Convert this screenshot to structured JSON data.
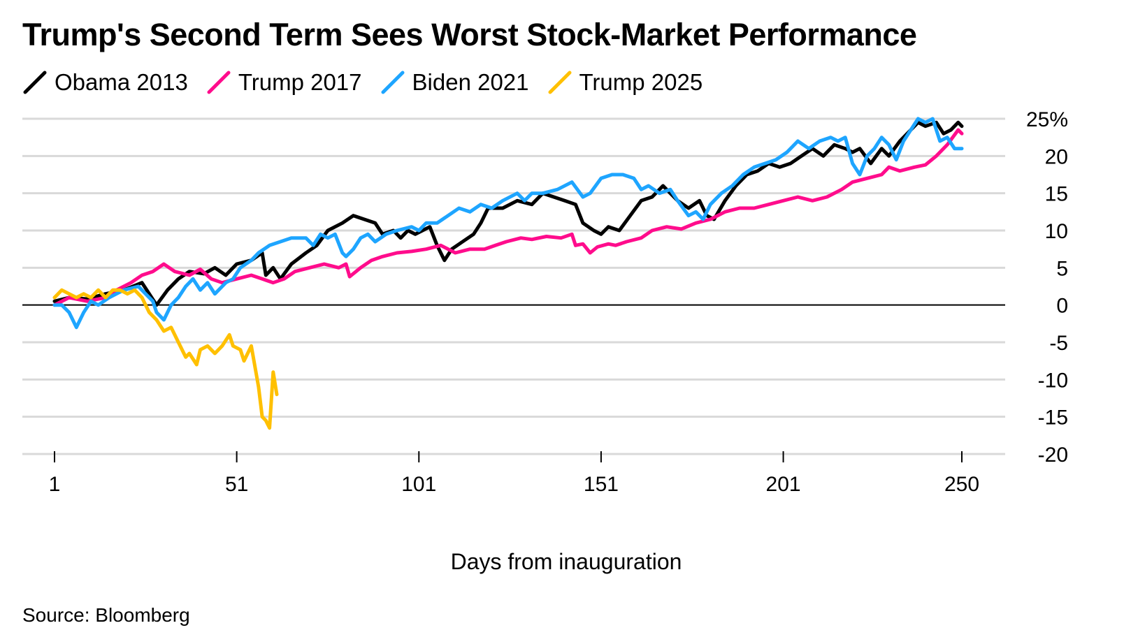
{
  "title": "Trump's Second Term Sees Worst Stock-Market Performance",
  "source": "Source: Bloomberg",
  "chart_data": {
    "type": "line",
    "title": "Trump's Second Term Sees Worst Stock-Market Performance",
    "xlabel": "Days from inauguration",
    "ylabel": "",
    "xlim": [
      1,
      250
    ],
    "ylim": [
      -20,
      25
    ],
    "x_ticks": [
      {
        "value": 1,
        "label": "1"
      },
      {
        "value": 51,
        "label": "51"
      },
      {
        "value": 101,
        "label": "101"
      },
      {
        "value": 151,
        "label": "151"
      },
      {
        "value": 201,
        "label": "201"
      },
      {
        "value": 250,
        "label": "250"
      }
    ],
    "y_ticks": [
      {
        "value": 25,
        "label": "25%"
      },
      {
        "value": 20,
        "label": "20"
      },
      {
        "value": 15,
        "label": "15"
      },
      {
        "value": 10,
        "label": "10"
      },
      {
        "value": 5,
        "label": "5"
      },
      {
        "value": 0,
        "label": "0"
      },
      {
        "value": -5,
        "label": "-5"
      },
      {
        "value": -10,
        "label": "-10"
      },
      {
        "value": -15,
        "label": "-15"
      },
      {
        "value": -20,
        "label": "-20"
      }
    ],
    "grid": true,
    "legend_position": "top-left",
    "series": [
      {
        "name": "Obama 2013",
        "color": "#000000",
        "points": [
          [
            1,
            0.5
          ],
          [
            5,
            1
          ],
          [
            10,
            0.8
          ],
          [
            15,
            1.5
          ],
          [
            20,
            2
          ],
          [
            25,
            3
          ],
          [
            29,
            0
          ],
          [
            32,
            2
          ],
          [
            35,
            3.5
          ],
          [
            38,
            4.5
          ],
          [
            42,
            4.2
          ],
          [
            45,
            5
          ],
          [
            48,
            4
          ],
          [
            51,
            5.5
          ],
          [
            55,
            6
          ],
          [
            58,
            7
          ],
          [
            59,
            4
          ],
          [
            61,
            5
          ],
          [
            63,
            3.5
          ],
          [
            66,
            5.5
          ],
          [
            70,
            7
          ],
          [
            73,
            8
          ],
          [
            76,
            10
          ],
          [
            80,
            11
          ],
          [
            83,
            12
          ],
          [
            86,
            11.5
          ],
          [
            89,
            11
          ],
          [
            91,
            9.5
          ],
          [
            94,
            10
          ],
          [
            96,
            9
          ],
          [
            98,
            10
          ],
          [
            100,
            9.5
          ],
          [
            102,
            10
          ],
          [
            104,
            10.5
          ],
          [
            106,
            8
          ],
          [
            108,
            6
          ],
          [
            110,
            7.5
          ],
          [
            113,
            8.5
          ],
          [
            116,
            9.5
          ],
          [
            118,
            11
          ],
          [
            120,
            13
          ],
          [
            124,
            13
          ],
          [
            128,
            14
          ],
          [
            132,
            13.5
          ],
          [
            135,
            15
          ],
          [
            138,
            14.5
          ],
          [
            141,
            14
          ],
          [
            144,
            13.5
          ],
          [
            146,
            11
          ],
          [
            149,
            10
          ],
          [
            151,
            9.5
          ],
          [
            153,
            10.5
          ],
          [
            156,
            10
          ],
          [
            159,
            12
          ],
          [
            162,
            14
          ],
          [
            165,
            14.5
          ],
          [
            168,
            16
          ],
          [
            170,
            15
          ],
          [
            172,
            14
          ],
          [
            175,
            13
          ],
          [
            178,
            14
          ],
          [
            180,
            12
          ],
          [
            182,
            11.5
          ],
          [
            185,
            14
          ],
          [
            188,
            16
          ],
          [
            191,
            17.5
          ],
          [
            194,
            18
          ],
          [
            197,
            19
          ],
          [
            200,
            18.5
          ],
          [
            203,
            19
          ],
          [
            206,
            20
          ],
          [
            209,
            21
          ],
          [
            212,
            20
          ],
          [
            215,
            21.5
          ],
          [
            218,
            21
          ],
          [
            220,
            20.5
          ],
          [
            222,
            21
          ],
          [
            225,
            19
          ],
          [
            228,
            21
          ],
          [
            230,
            20
          ],
          [
            233,
            22
          ],
          [
            236,
            23.5
          ],
          [
            238,
            24.5
          ],
          [
            240,
            24
          ],
          [
            243,
            24.5
          ],
          [
            245,
            23
          ],
          [
            247,
            23.5
          ],
          [
            249,
            24.5
          ],
          [
            250,
            24
          ]
        ]
      },
      {
        "name": "Trump 2017",
        "color": "#FF0C8C",
        "points": [
          [
            1,
            0
          ],
          [
            5,
            1
          ],
          [
            10,
            0.5
          ],
          [
            15,
            1
          ],
          [
            18,
            2
          ],
          [
            22,
            3
          ],
          [
            25,
            4
          ],
          [
            28,
            4.5
          ],
          [
            31,
            5.5
          ],
          [
            34,
            4.5
          ],
          [
            38,
            4
          ],
          [
            41,
            4.8
          ],
          [
            44,
            3.5
          ],
          [
            47,
            3
          ],
          [
            51,
            3.5
          ],
          [
            55,
            4
          ],
          [
            58,
            3.5
          ],
          [
            61,
            3
          ],
          [
            64,
            3.5
          ],
          [
            67,
            4.5
          ],
          [
            71,
            5
          ],
          [
            75,
            5.5
          ],
          [
            79,
            5
          ],
          [
            81,
            5.5
          ],
          [
            82,
            3.8
          ],
          [
            85,
            5
          ],
          [
            88,
            6
          ],
          [
            91,
            6.5
          ],
          [
            95,
            7
          ],
          [
            99,
            7.2
          ],
          [
            103,
            7.5
          ],
          [
            107,
            8
          ],
          [
            111,
            7
          ],
          [
            115,
            7.5
          ],
          [
            119,
            7.5
          ],
          [
            122,
            8
          ],
          [
            125,
            8.5
          ],
          [
            129,
            9
          ],
          [
            132,
            8.8
          ],
          [
            136,
            9.2
          ],
          [
            140,
            9
          ],
          [
            143,
            9.5
          ],
          [
            144,
            8
          ],
          [
            146,
            8.2
          ],
          [
            148,
            7
          ],
          [
            150,
            7.8
          ],
          [
            153,
            8.2
          ],
          [
            155,
            8
          ],
          [
            158,
            8.5
          ],
          [
            162,
            9
          ],
          [
            165,
            10
          ],
          [
            169,
            10.5
          ],
          [
            173,
            10.2
          ],
          [
            177,
            11
          ],
          [
            181,
            11.5
          ],
          [
            185,
            12.5
          ],
          [
            189,
            13
          ],
          [
            193,
            13
          ],
          [
            197,
            13.5
          ],
          [
            201,
            14
          ],
          [
            205,
            14.5
          ],
          [
            209,
            14
          ],
          [
            213,
            14.5
          ],
          [
            217,
            15.5
          ],
          [
            220,
            16.5
          ],
          [
            224,
            17
          ],
          [
            228,
            17.5
          ],
          [
            230,
            18.5
          ],
          [
            233,
            18
          ],
          [
            237,
            18.5
          ],
          [
            240,
            18.8
          ],
          [
            243,
            20
          ],
          [
            246,
            21.5
          ],
          [
            249,
            23.5
          ],
          [
            250,
            23
          ]
        ]
      },
      {
        "name": "Biden 2021",
        "color": "#1EA5FF",
        "points": [
          [
            1,
            0
          ],
          [
            3,
            0
          ],
          [
            5,
            -1
          ],
          [
            7,
            -3
          ],
          [
            9,
            -1
          ],
          [
            11,
            0.5
          ],
          [
            13,
            0
          ],
          [
            16,
            1
          ],
          [
            20,
            2
          ],
          [
            24,
            2.5
          ],
          [
            26,
            1.5
          ],
          [
            28,
            0.5
          ],
          [
            29,
            -1
          ],
          [
            31,
            -2
          ],
          [
            33,
            0
          ],
          [
            35,
            1
          ],
          [
            37,
            2.5
          ],
          [
            39,
            3.5
          ],
          [
            41,
            2
          ],
          [
            43,
            3
          ],
          [
            45,
            1.5
          ],
          [
            48,
            3
          ],
          [
            50,
            3.5
          ],
          [
            52,
            5
          ],
          [
            55,
            6
          ],
          [
            57,
            7
          ],
          [
            60,
            8
          ],
          [
            63,
            8.5
          ],
          [
            66,
            9
          ],
          [
            70,
            9
          ],
          [
            72,
            8
          ],
          [
            74,
            9.5
          ],
          [
            76,
            9
          ],
          [
            78,
            9.5
          ],
          [
            80,
            7
          ],
          [
            81,
            6.5
          ],
          [
            83,
            7.5
          ],
          [
            85,
            9
          ],
          [
            87,
            9.5
          ],
          [
            89,
            8.5
          ],
          [
            92,
            9.5
          ],
          [
            95,
            10
          ],
          [
            99,
            10.5
          ],
          [
            101,
            10
          ],
          [
            103,
            11
          ],
          [
            106,
            11
          ],
          [
            109,
            12
          ],
          [
            112,
            13
          ],
          [
            115,
            12.5
          ],
          [
            118,
            13.5
          ],
          [
            121,
            13
          ],
          [
            124,
            14
          ],
          [
            128,
            15
          ],
          [
            130,
            14
          ],
          [
            132,
            15
          ],
          [
            135,
            15
          ],
          [
            139,
            15.5
          ],
          [
            143,
            16.5
          ],
          [
            146,
            14.5
          ],
          [
            148,
            15
          ],
          [
            151,
            17
          ],
          [
            154,
            17.5
          ],
          [
            157,
            17.5
          ],
          [
            160,
            17
          ],
          [
            162,
            15.5
          ],
          [
            164,
            16
          ],
          [
            167,
            15
          ],
          [
            170,
            15.5
          ],
          [
            172,
            14
          ],
          [
            175,
            12
          ],
          [
            177,
            12.5
          ],
          [
            179,
            11.5
          ],
          [
            181,
            13.5
          ],
          [
            184,
            15
          ],
          [
            187,
            16
          ],
          [
            190,
            17.5
          ],
          [
            193,
            18.5
          ],
          [
            196,
            19
          ],
          [
            199,
            19.5
          ],
          [
            202,
            20.5
          ],
          [
            205,
            22
          ],
          [
            208,
            21
          ],
          [
            211,
            22
          ],
          [
            214,
            22.5
          ],
          [
            216,
            22
          ],
          [
            218,
            22.5
          ],
          [
            220,
            19
          ],
          [
            222,
            17.5
          ],
          [
            224,
            20
          ],
          [
            226,
            21
          ],
          [
            228,
            22.5
          ],
          [
            230,
            21.5
          ],
          [
            232,
            19.5
          ],
          [
            234,
            22
          ],
          [
            236,
            23.5
          ],
          [
            238,
            25
          ],
          [
            240,
            24.5
          ],
          [
            242,
            25
          ],
          [
            244,
            22
          ],
          [
            246,
            22.5
          ],
          [
            248,
            21
          ],
          [
            250,
            21
          ]
        ]
      },
      {
        "name": "Trump 2025",
        "color": "#FFC000",
        "points": [
          [
            1,
            1
          ],
          [
            3,
            2
          ],
          [
            5,
            1.5
          ],
          [
            7,
            1
          ],
          [
            9,
            1.5
          ],
          [
            11,
            1
          ],
          [
            13,
            2
          ],
          [
            15,
            1
          ],
          [
            17,
            2
          ],
          [
            19,
            2
          ],
          [
            21,
            1.5
          ],
          [
            23,
            2
          ],
          [
            25,
            1
          ],
          [
            27,
            -1
          ],
          [
            29,
            -2
          ],
          [
            31,
            -3.5
          ],
          [
            33,
            -3
          ],
          [
            35,
            -5
          ],
          [
            37,
            -7
          ],
          [
            38,
            -6.5
          ],
          [
            40,
            -8
          ],
          [
            41,
            -6
          ],
          [
            43,
            -5.5
          ],
          [
            45,
            -6.5
          ],
          [
            47,
            -5.5
          ],
          [
            49,
            -4
          ],
          [
            50,
            -5.5
          ],
          [
            52,
            -6
          ],
          [
            53,
            -7.5
          ],
          [
            55,
            -5.5
          ],
          [
            57,
            -11
          ],
          [
            58,
            -15
          ],
          [
            59,
            -15.5
          ],
          [
            60,
            -16.5
          ],
          [
            61,
            -9
          ],
          [
            62,
            -12
          ]
        ]
      }
    ]
  }
}
